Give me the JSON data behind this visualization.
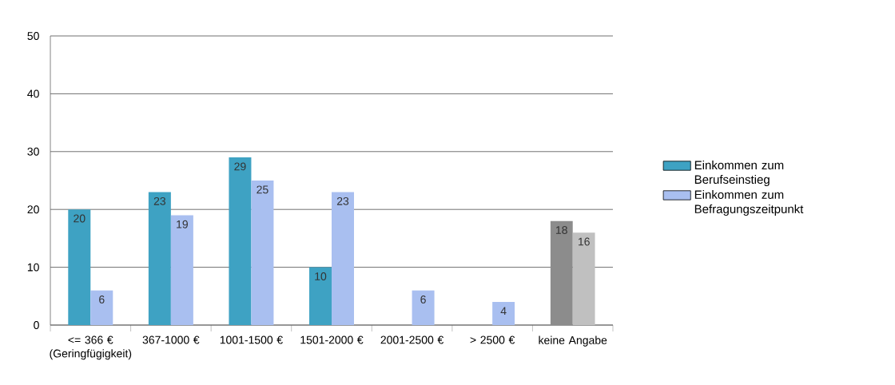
{
  "chart_data": {
    "type": "bar",
    "categories": [
      "<= 366 € (Geringfügigkeit)",
      "367-1000 €",
      "1001-1500 €",
      "1501-2000 €",
      "2001-2500 €",
      "> 2500 €",
      "keine Angabe"
    ],
    "series": [
      {
        "name": "Einkommen zum Berufseinstieg",
        "color": "#3ea2c3",
        "colors": [
          "#3ea2c3",
          "#3ea2c3",
          "#3ea2c3",
          "#3ea2c3",
          "#3ea2c3",
          "#3ea2c3",
          "#8c8c8c"
        ],
        "values": [
          20,
          23,
          29,
          10,
          null,
          null,
          18
        ]
      },
      {
        "name": "Einkommen zum Befragungszeitpunkt",
        "color": "#a9bff0",
        "colors": [
          "#a9bff0",
          "#a9bff0",
          "#a9bff0",
          "#a9bff0",
          "#a9bff0",
          "#a9bff0",
          "#c0c0c0"
        ],
        "values": [
          6,
          19,
          25,
          23,
          6,
          4,
          16
        ]
      }
    ],
    "ylim": [
      0,
      50
    ],
    "yticks": [
      0,
      10,
      20,
      30,
      40,
      50
    ],
    "grid": "y",
    "legend": "right",
    "data_labels": true
  }
}
